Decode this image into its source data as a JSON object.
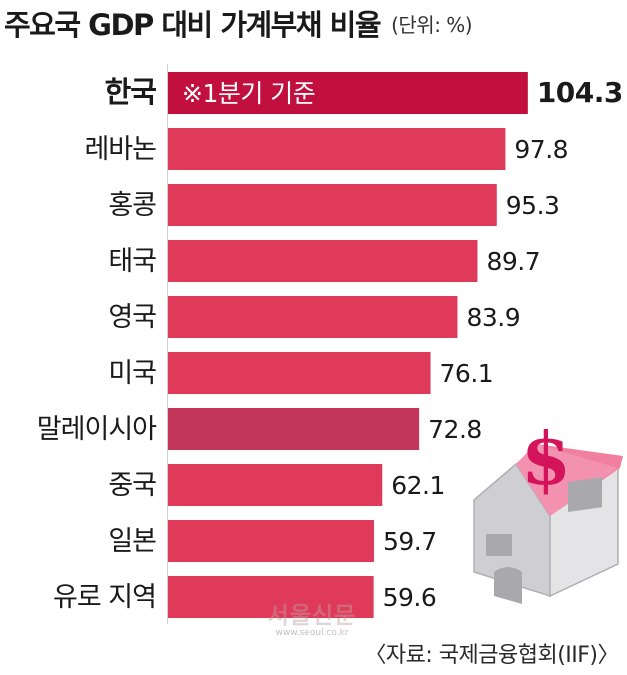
{
  "title": "주요국 GDP 대비 가계부채 비율",
  "unit": "(단위: %)",
  "note": "※1분기 기준",
  "source": "〈자료: 국제금융협회(IIF)〉",
  "watermark": "서울신문",
  "watermark_url": "www.seoul.co.kr",
  "colors": {
    "bar": "#e03a5a",
    "highlight": "#c2103e",
    "malaysia": "#c3385a",
    "roof": "#f07fa0",
    "dollar": "#d4145a"
  },
  "icon": "house-with-dollar-sign-icon",
  "chart_data": {
    "type": "bar",
    "orientation": "horizontal",
    "title": "주요국 GDP 대비 가계부채 비율",
    "unit": "%",
    "categories": [
      "한국",
      "레바논",
      "홍콩",
      "태국",
      "영국",
      "미국",
      "말레이시아",
      "중국",
      "일본",
      "유로 지역"
    ],
    "values": [
      104.3,
      97.8,
      95.3,
      89.7,
      83.9,
      76.1,
      72.8,
      62.1,
      59.7,
      59.6
    ],
    "highlight": "한국",
    "xlim": [
      0,
      110
    ],
    "grid": false,
    "legend": "none"
  }
}
